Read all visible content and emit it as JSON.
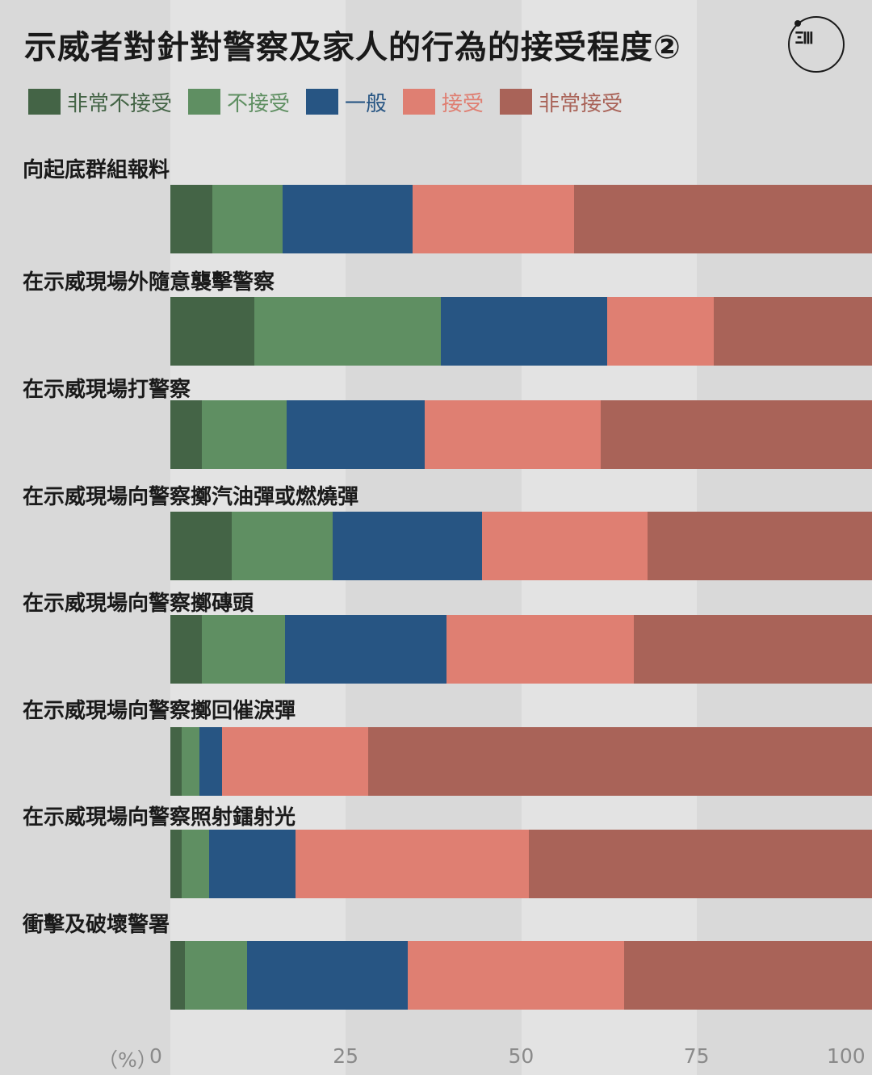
{
  "title": "示威者對針對警察及家人的行為的接受程度②",
  "logo_icon": "initium-logo-icon",
  "colors": {
    "background": "#d9d9d9",
    "stripe": "#e3e3e3",
    "very_unacceptable": "#446446",
    "unacceptable": "#5f8f62",
    "neutral": "#275583",
    "acceptable": "#df7f72",
    "very_acceptable": "#a96358"
  },
  "chart_data": {
    "type": "bar",
    "orientation": "horizontal",
    "stacked": true,
    "title": "示威者對針對警察及家人的行為的接受程度②",
    "xlabel": "（%）",
    "xlim": [
      0,
      100
    ],
    "xticks": [
      "0",
      "25",
      "50",
      "75",
      "100"
    ],
    "legend_position": "top-left",
    "categories": [
      "向起底群組報料",
      "在示威現場外隨意襲擊警察",
      "在示威現場打警察",
      "在示威現場向警察擲汽油彈或燃燒彈",
      "在示威現場向警察擲磚頭",
      "在示威現場向警察擲回催淚彈",
      "在示威現場向警察照射鐳射光",
      "衝擊及破壞警署"
    ],
    "series": [
      {
        "name": "非常不接受",
        "color": "#446446",
        "values": [
          6,
          12,
          4.5,
          8.7,
          4.5,
          1.6,
          1.6,
          2.1
        ]
      },
      {
        "name": "不接受",
        "color": "#5f8f62",
        "values": [
          10,
          26.6,
          12.1,
          14.4,
          11.8,
          2.5,
          3.9,
          8.8
        ]
      },
      {
        "name": "一般",
        "color": "#275583",
        "values": [
          18.5,
          23.6,
          19.6,
          21.3,
          23,
          3.3,
          12.3,
          22.9
        ]
      },
      {
        "name": "接受",
        "color": "#df7f72",
        "values": [
          23,
          15.3,
          25.1,
          23.6,
          26.8,
          20.8,
          33.3,
          30.9
        ]
      },
      {
        "name": "非常接受",
        "color": "#a96358",
        "values": [
          42.5,
          22.5,
          38.7,
          32,
          33.9,
          71.8,
          48.9,
          35.3
        ]
      }
    ]
  }
}
